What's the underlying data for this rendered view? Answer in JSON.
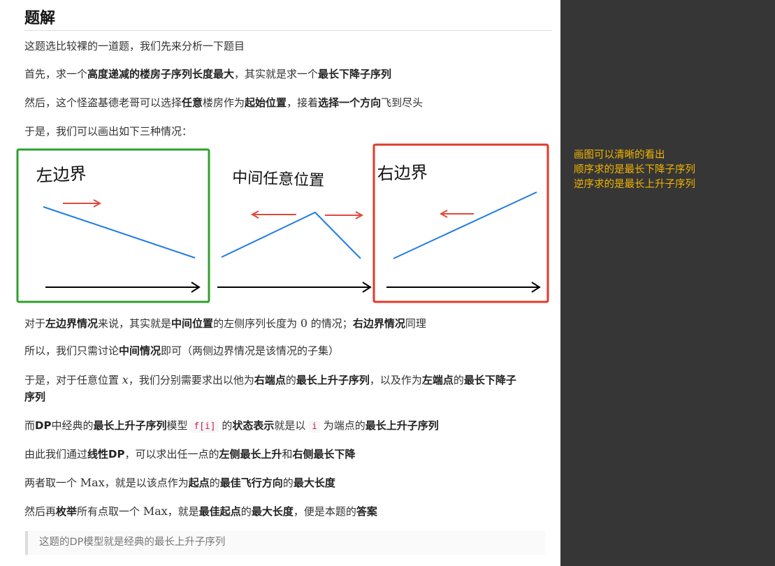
{
  "title": "题解",
  "intro": "这题选比较裸的一道题，我们先来分析一下题目",
  "p1": {
    "a": "首先，求一个",
    "b": "高度递减的楼房子序列长度最大",
    "c": "，其实就是求一个",
    "d": "最长下降子序列"
  },
  "p2": {
    "a": "然后，这个怪盗基德老哥可以选择",
    "b": "任意",
    "c": "楼房作为",
    "d": "起始位置",
    "e": "，接着",
    "f": "选择一个方向",
    "g": "飞到尽头"
  },
  "p3": "于是，我们可以画出如下三种情况：",
  "figure": {
    "left_label": "左边界",
    "mid_label": "中间任意位置",
    "right_label": "右边界",
    "colors": {
      "green": "#2ea12e",
      "red": "#e23a2a",
      "blue": "#1f7be6",
      "arrow": "#e04a3a",
      "axis": "#000000"
    }
  },
  "p4": {
    "a": "对于",
    "b": "左边界情况",
    "c": "来说，其实就是",
    "d": "中间位置",
    "e": "的左侧序列长度为 ",
    "f": "0",
    "g": " 的情况；",
    "h": "右边界情况",
    "i": "同理"
  },
  "p5": {
    "a": "所以，我们只需讨论",
    "b": "中间情况",
    "c": "即可（两侧边界情况是该情况的子集）"
  },
  "p6": {
    "a": "于是，对于任意位置 ",
    "b": "x",
    "c": "，我们分别需要求出以他为",
    "d": "右端点",
    "e": "的",
    "f": "最长上升子序列",
    "g": "，以及作为",
    "h": "左端点",
    "i": "的",
    "j": "最长下降子",
    "k": "序列"
  },
  "p7": {
    "a": "而",
    "b": "DP",
    "c": "中经典的",
    "d": "最长上升子序列",
    "e": "模型 ",
    "f": "f[i]",
    "g": " 的",
    "h": "状态表示",
    "i": "就是以 ",
    "j": "i",
    "k": " 为端点的",
    "l": "最长上升子序列"
  },
  "p8": {
    "a": "由此我们通过",
    "b": "线性DP",
    "c": "，可以求出任一点的",
    "d": "左侧最长上升",
    "e": "和",
    "f": "右侧最长下降"
  },
  "p9": {
    "a": "两者取一个 ",
    "b": "Max",
    "c": "，就是以该点作为",
    "d": "起点",
    "e": "的",
    "f": "最佳飞行方向",
    "g": "的",
    "h": "最大长度"
  },
  "p10": {
    "a": "然后再",
    "b": "枚举",
    "c": "所有点取一个 ",
    "d": "Max",
    "e": "，就是",
    "f": "最佳起点",
    "g": "的",
    "h": "最大长度",
    "i": "，便是本题的",
    "j": "答案"
  },
  "quote": "这题的DP模型就是经典的最长上升子序列",
  "side_note": [
    "画图可以清晰的看出",
    "顺序求的是最长下降子序列",
    "逆序求的是最长上升子序列"
  ]
}
